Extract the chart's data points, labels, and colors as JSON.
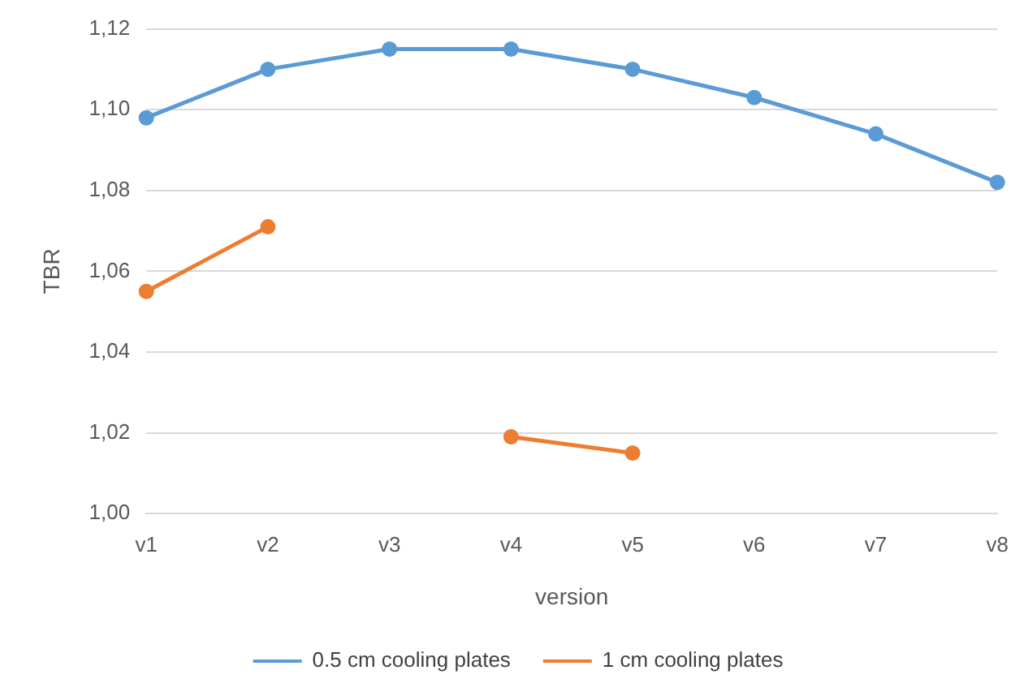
{
  "chart_data": {
    "type": "line",
    "xlabel": "version",
    "ylabel": "TBR",
    "categories": [
      "v1",
      "v2",
      "v3",
      "v4",
      "v5",
      "v6",
      "v7",
      "v8"
    ],
    "series": [
      {
        "name": "0.5 cm cooling plates",
        "color": "#5b9bd5",
        "values": [
          1.098,
          1.11,
          1.115,
          1.115,
          1.11,
          1.103,
          1.094,
          1.082
        ]
      },
      {
        "name": "1 cm cooling plates",
        "color": "#ed7d31",
        "values": [
          1.055,
          1.071,
          null,
          1.019,
          1.015,
          null,
          null,
          null
        ]
      }
    ],
    "ylim": [
      1.0,
      1.12
    ],
    "yticks": [
      {
        "value": 1.0,
        "label": "1,00"
      },
      {
        "value": 1.02,
        "label": "1,02"
      },
      {
        "value": 1.04,
        "label": "1,04"
      },
      {
        "value": 1.06,
        "label": "1,06"
      },
      {
        "value": 1.08,
        "label": "1,08"
      },
      {
        "value": 1.1,
        "label": "1,10"
      },
      {
        "value": 1.12,
        "label": "1,12"
      }
    ],
    "grid": "y",
    "legend": "bottom",
    "marker": "circle",
    "line_style": "solid"
  }
}
